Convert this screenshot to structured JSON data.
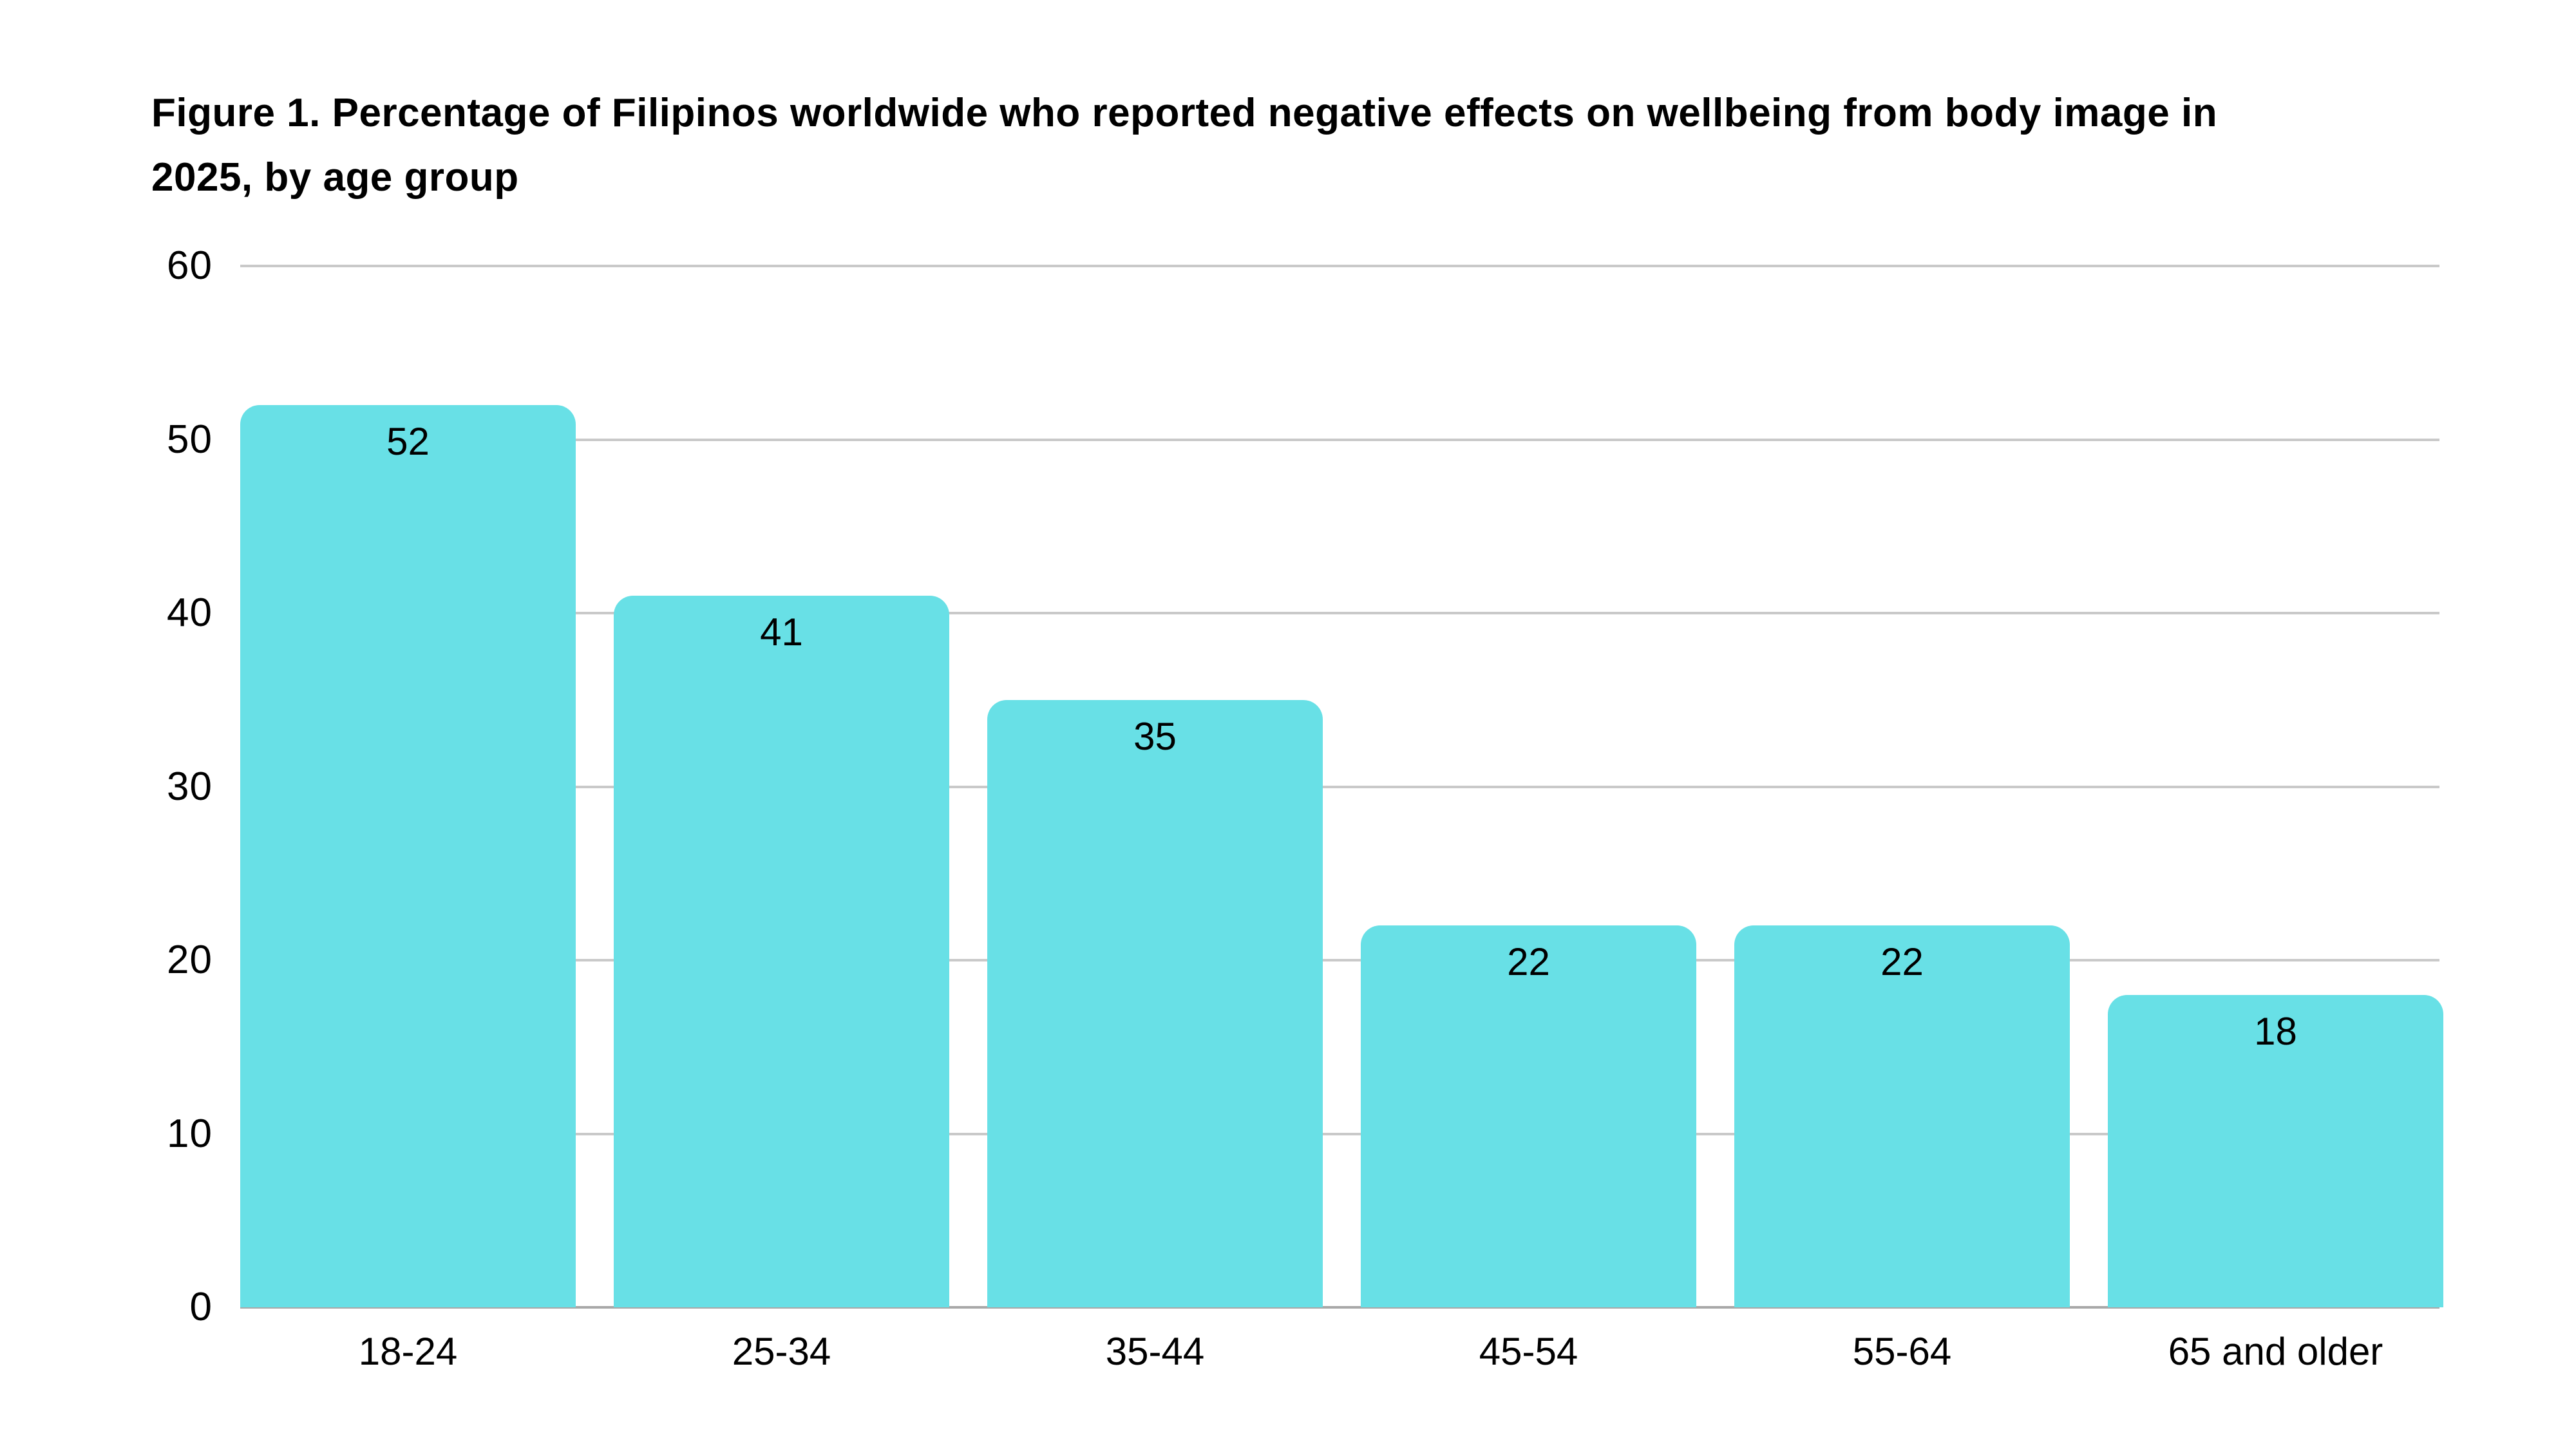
{
  "chart_data": {
    "type": "bar",
    "title": "Figure 1. Percentage of Filipinos worldwide who reported negative effects on wellbeing from body image in 2025, by age group",
    "title_lines": [
      "Figure 1. Percentage of Filipinos worldwide who reported negative effects on wellbeing from body image in",
      "2025, by age group"
    ],
    "categories": [
      "18-24",
      "25-34",
      "35-44",
      "45-54",
      "55-64",
      "65 and older"
    ],
    "values": [
      52,
      41,
      35,
      22,
      22,
      18
    ],
    "data_labels": [
      "52",
      "41",
      "35",
      "22",
      "22",
      "18"
    ],
    "xlabel": "",
    "ylabel": "",
    "ylim": [
      0,
      60
    ],
    "yticks": [
      60,
      50,
      40,
      30,
      20,
      10,
      0
    ],
    "grid": "horizontal",
    "legend": "none",
    "colors": {
      "bar": "#68E0E6",
      "gridline": "#C9C9C9",
      "baseline": "#A8A8A8",
      "text": "#000000",
      "background": "#FFFFFF"
    }
  }
}
